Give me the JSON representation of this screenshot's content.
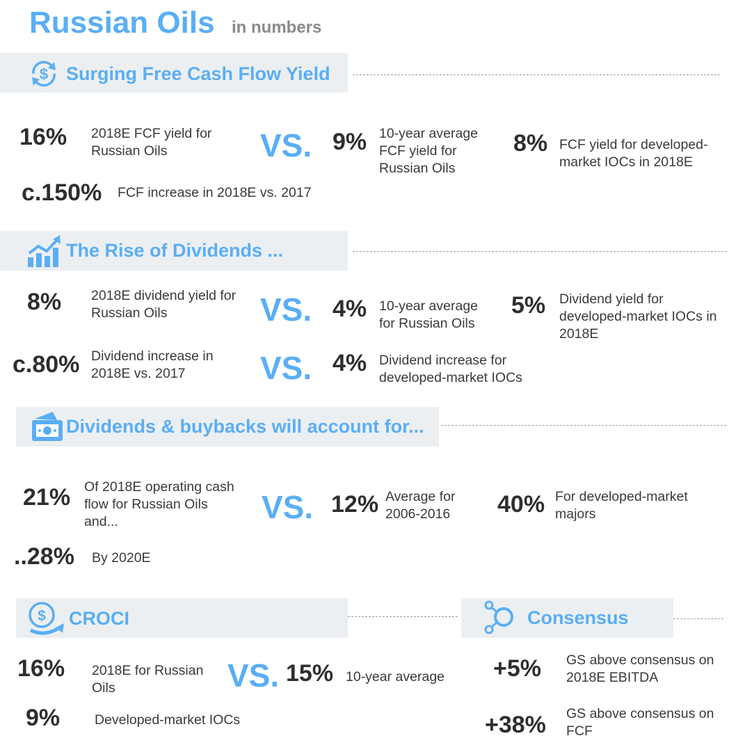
{
  "header": {
    "title": "Russian Oils",
    "subtitle": "in numbers"
  },
  "vs_label": "VS.",
  "colors": {
    "accent": "#5aaef5",
    "band": "#eceff1",
    "text": "#333333"
  },
  "sections": {
    "fcf": {
      "title": "Surging Free Cash Flow Yield",
      "icon": "dollar-refresh-icon",
      "s1_value": "16%",
      "s1_label": "2018E FCF yield for Russian Oils",
      "s2_value": "9%",
      "s2_label": "10-year average FCF yield for Russian Oils",
      "s3_value": "8%",
      "s3_label": "FCF yield for developed-market IOCs in 2018E",
      "s4_value": "c.150%",
      "s4_label": "FCF increase in 2018E vs. 2017"
    },
    "dividends": {
      "title": "The Rise of Dividends ...",
      "icon": "growth-chart-icon",
      "s1_value": "8%",
      "s1_label": "2018E dividend yield for Russian Oils",
      "s2_value": "4%",
      "s2_label": "10-year average for Russian Oils",
      "s3_value": "5%",
      "s3_label": "Dividend yield for developed-market IOCs in 2018E",
      "s4_value": "c.80%",
      "s4_label": "Dividend increase in 2018E vs. 2017",
      "s5_value": "4%",
      "s5_label": "Dividend increase for developed-market IOCs"
    },
    "buybacks": {
      "title": "Dividends & buybacks will account for...",
      "icon": "money-box-icon",
      "s1_value": "21%",
      "s1_label": "Of 2018E operating cash flow for Russian Oils and...",
      "s2_value": "12%",
      "s2_label": "Average for 2006-2016",
      "s3_value": "40%",
      "s3_label": "For developed-market majors",
      "s4_value": "..28%",
      "s4_label": "By 2020E"
    },
    "croci": {
      "title": "CROCI",
      "icon": "dollar-hand-icon",
      "s1_value": "16%",
      "s1_label": "2018E for Russian Oils",
      "s2_value": "15%",
      "s2_label": "10-year average",
      "s3_value": "9%",
      "s3_label": "Developed-market IOCs"
    },
    "consensus": {
      "title": "Consensus",
      "icon": "network-node-icon",
      "s1_value": "+5%",
      "s1_label": "GS above consensus on 2018E EBITDA",
      "s2_value": "+38%",
      "s2_label": "GS above consensus on FCF"
    }
  }
}
